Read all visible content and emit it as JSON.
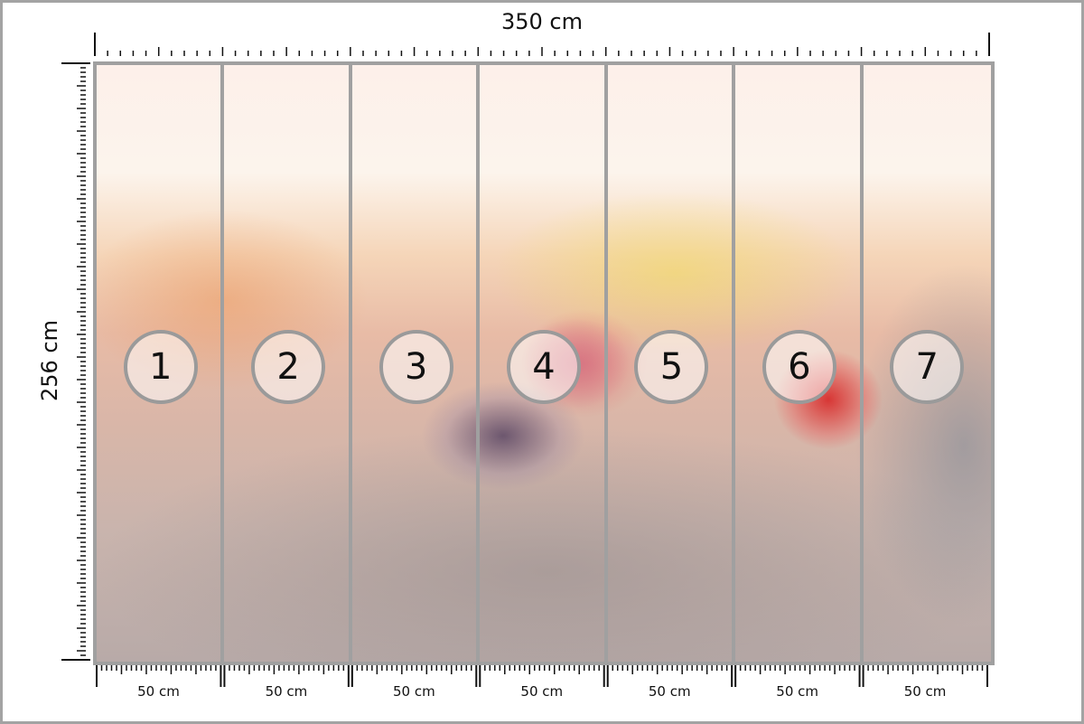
{
  "dimensions": {
    "width_label": "350 cm",
    "height_label": "256 cm"
  },
  "panels": [
    {
      "number": "1",
      "width_label": "50 cm"
    },
    {
      "number": "2",
      "width_label": "50 cm"
    },
    {
      "number": "3",
      "width_label": "50 cm"
    },
    {
      "number": "4",
      "width_label": "50 cm"
    },
    {
      "number": "5",
      "width_label": "50 cm"
    },
    {
      "number": "6",
      "width_label": "50 cm"
    },
    {
      "number": "7",
      "width_label": "50 cm"
    }
  ],
  "colors": {
    "frame": "#a0a0a0",
    "ruler": "#111111"
  }
}
